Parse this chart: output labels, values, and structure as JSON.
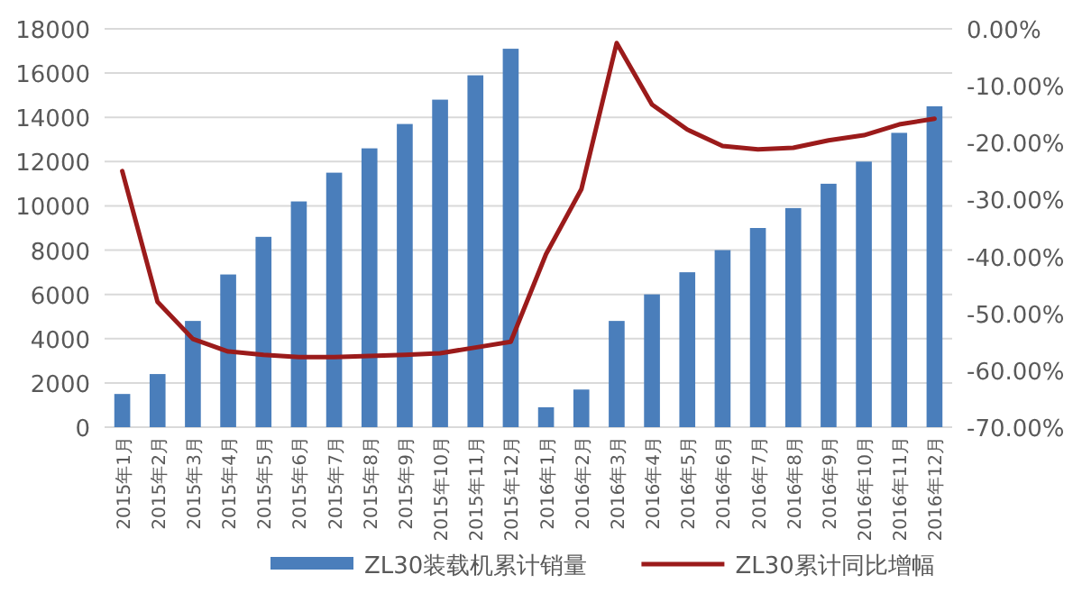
{
  "chart_data": {
    "type": "bar",
    "categories": [
      "2015年1月",
      "2015年2月",
      "2015年3月",
      "2015年4月",
      "2015年5月",
      "2015年6月",
      "2015年7月",
      "2015年8月",
      "2015年9月",
      "2015年10月",
      "2015年11月",
      "2015年12月",
      "2016年1月",
      "2016年2月",
      "2016年3月",
      "2016年4月",
      "2016年5月",
      "2016年6月",
      "2016年7月",
      "2016年8月",
      "2016年9月",
      "2016年10月",
      "2016年11月",
      "2016年12月"
    ],
    "series": [
      {
        "name": "ZL30装载机累计销量",
        "color": "#4a7ebb",
        "values": [
          1500,
          2400,
          4800,
          6900,
          8600,
          10200,
          11500,
          12600,
          13700,
          14800,
          15900,
          17100,
          900,
          1700,
          4800,
          6000,
          7000,
          8000,
          9000,
          9900,
          11000,
          12000,
          13300,
          14500
        ]
      },
      {
        "name": "ZL30累计同比增幅",
        "type": "line",
        "axis": "y2",
        "color": "#9b1b1b",
        "values": [
          -25,
          -48,
          -54.5,
          -56.7,
          -57.3,
          -57.7,
          -57.7,
          -57.5,
          -57.3,
          -57,
          -56,
          -55,
          -39.6,
          -28.2,
          -2.5,
          -13.3,
          -17.7,
          -20.6,
          -21.2,
          -20.9,
          -19.6,
          -18.7,
          -16.8,
          -15.8
        ]
      }
    ],
    "ylim": [
      0,
      18000
    ],
    "yticks": [
      0,
      2000,
      4000,
      6000,
      8000,
      10000,
      12000,
      14000,
      16000,
      18000
    ],
    "y2lim": [
      -70,
      0
    ],
    "y2ticks": [
      {
        "value": -70,
        "label": "-70.00%"
      },
      {
        "value": -60,
        "label": "-60.00%"
      },
      {
        "value": -50,
        "label": "-50.00%"
      },
      {
        "value": -40,
        "label": "-40.00%"
      },
      {
        "value": -30,
        "label": "-30.00%"
      },
      {
        "value": -20,
        "label": "-20.00%"
      },
      {
        "value": -10,
        "label": "-10.00%"
      },
      {
        "value": 0,
        "label": "0.00%"
      }
    ],
    "grid": "y",
    "legend": "bottom",
    "marker": "none",
    "line_style": "solid"
  }
}
